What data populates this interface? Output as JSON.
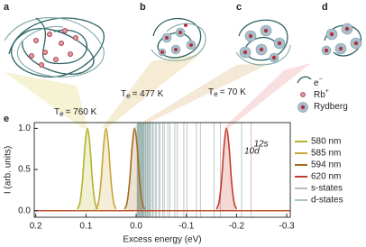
{
  "panels": [
    {
      "label": "a",
      "temperature": {
        "symbol": "T",
        "subscript": "e",
        "value": "= 760 K"
      }
    },
    {
      "label": "b",
      "temperature": {
        "symbol": "T",
        "subscript": "e",
        "value": "= 477 K"
      }
    },
    {
      "label": "c",
      "temperature": {
        "symbol": "T",
        "subscript": "e",
        "value": "= 70 K"
      }
    },
    {
      "label": "d"
    }
  ],
  "particle_legend": [
    {
      "text": "e",
      "sup": "−"
    },
    {
      "text": "Rb",
      "sup": "+"
    },
    {
      "text": "Rydberg"
    }
  ],
  "chart_data": {
    "type": "line",
    "panel_label": "e",
    "xlabel": "Excess energy (eV)",
    "ylabel": "I (arb. units)",
    "xlim": [
      0.203,
      -0.307
    ],
    "ylim": [
      -0.08,
      1.07
    ],
    "xticks": [
      0.2,
      0.1,
      {
        "value": 0,
        "label": "0.0"
      },
      -0.1,
      -0.2,
      -0.3
    ],
    "yticks": [
      {
        "value": 0,
        "label": "0.0"
      },
      0.5,
      {
        "value": 1,
        "label": "1.0"
      }
    ],
    "series": [
      {
        "name": "580 nm",
        "color": "#b3b42a",
        "x": [
          0.117,
          0.112,
          0.107,
          0.102,
          0.097,
          0.092,
          0.087,
          0.082,
          0.077
        ],
        "values": [
          0.02,
          0.1,
          0.36,
          0.78,
          1.0,
          0.78,
          0.36,
          0.1,
          0.02
        ]
      },
      {
        "name": "585 nm",
        "color": "#c9a536",
        "x": [
          0.08,
          0.075,
          0.07,
          0.065,
          0.06,
          0.055,
          0.05,
          0.045,
          0.04
        ],
        "values": [
          0.02,
          0.1,
          0.36,
          0.78,
          1.0,
          0.78,
          0.36,
          0.1,
          0.02
        ]
      },
      {
        "name": "594 nm",
        "color": "#a46c1e",
        "x": [
          0.023,
          0.018,
          0.013,
          0.008,
          0.003,
          -0.002,
          -0.007,
          -0.012,
          -0.017
        ],
        "values": [
          0.02,
          0.1,
          0.36,
          0.78,
          1.0,
          0.78,
          0.36,
          0.1,
          0.02
        ]
      },
      {
        "name": "620 nm",
        "color": "#c63a2c",
        "x": [
          -0.16,
          -0.165,
          -0.17,
          -0.175,
          -0.18,
          -0.185,
          -0.19,
          -0.195,
          -0.2
        ],
        "values": [
          0.02,
          0.1,
          0.36,
          0.78,
          1.0,
          0.78,
          0.36,
          0.1,
          0.02
        ]
      }
    ],
    "state_lines": [
      {
        "name": "s-states",
        "label": "12s",
        "color": "#a9a9a9",
        "positions": [
          -0.229,
          -0.168,
          -0.128,
          -0.101,
          -0.082,
          -0.067,
          -0.056,
          -0.047,
          -0.04,
          -0.034,
          -0.03,
          -0.026,
          -0.023,
          -0.02,
          -0.018,
          -0.015,
          -0.013,
          -0.011,
          -0.009,
          -0.007,
          -0.005,
          -0.003
        ]
      },
      {
        "name": "d-states",
        "label": "10d",
        "color": "#8ab3b2",
        "positions": [
          -0.21,
          -0.155,
          -0.12,
          -0.095,
          -0.077,
          -0.063,
          -0.053,
          -0.045,
          -0.038,
          -0.033,
          -0.028,
          -0.025,
          -0.022,
          -0.019,
          -0.016,
          -0.014,
          -0.012,
          -0.01,
          -0.008,
          -0.006,
          -0.004,
          -0.002
        ]
      }
    ]
  }
}
